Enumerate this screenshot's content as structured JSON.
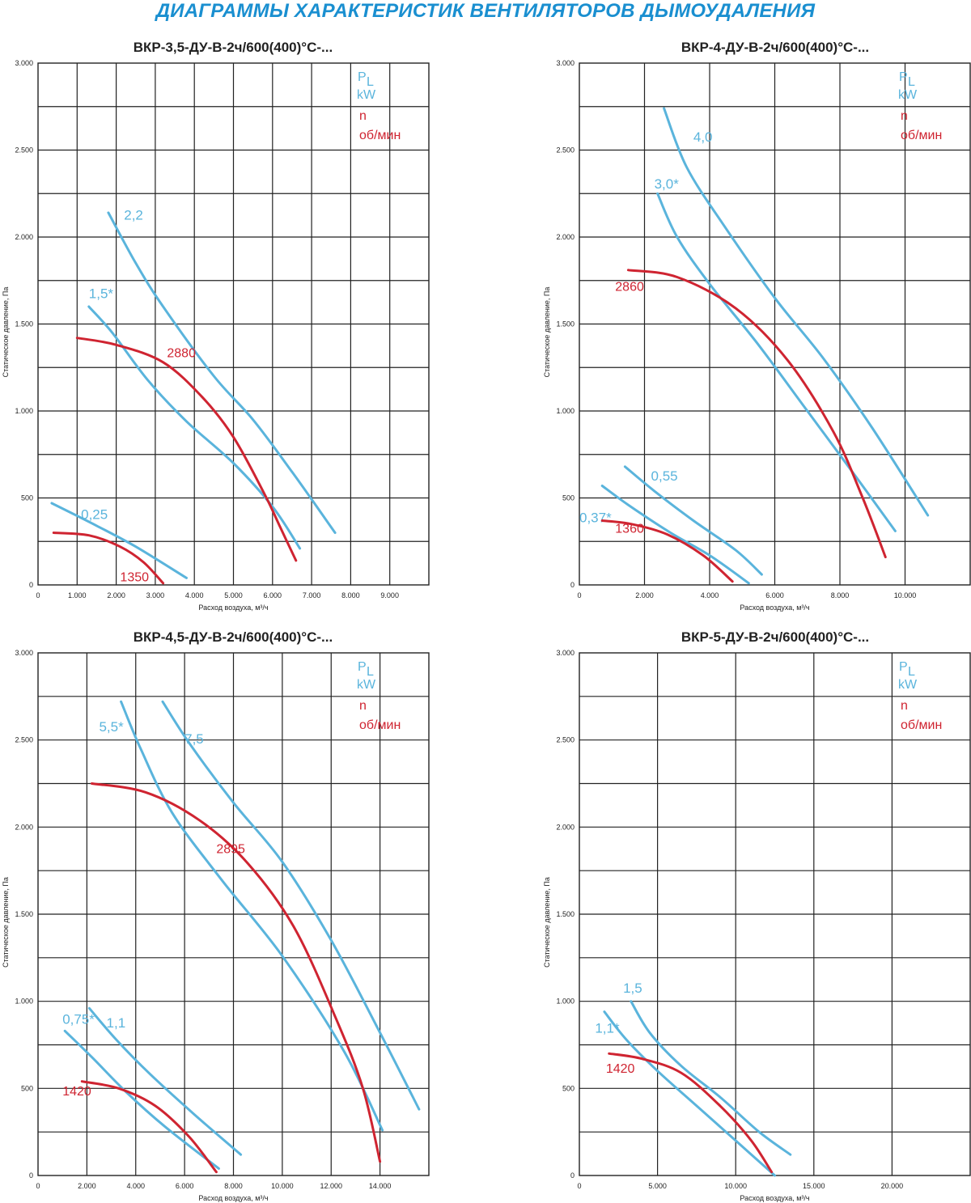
{
  "page_title": "ДИАГРАММЫ ХАРАКТЕРИСТИК ВЕНТИЛЯТОРОВ ДЫМОУДАЛЕНИЯ",
  "colors": {
    "title": "#1a8fd0",
    "power": "#5ab4dc",
    "speed": "#cf2431",
    "grid": "#222222"
  },
  "chart_data": [
    {
      "type": "line",
      "title": "ВКР-3,5-ДУ-В-2ч/600(400)°С-...",
      "xlabel": "Расход воздуха, м³/ч",
      "ylabel": "Статическое давление, Па",
      "xlim": [
        0,
        10000
      ],
      "ylim": [
        0,
        3000
      ],
      "x_ticks": [
        0,
        1000,
        2000,
        3000,
        4000,
        5000,
        6000,
        7000,
        8000,
        9000
      ],
      "x_tick_labels": [
        "0",
        "1.000",
        "2.000",
        "3.000",
        "4.000",
        "5.000",
        "6.000",
        "7.000",
        "8.000",
        "9.000"
      ],
      "y_ticks": [
        0,
        500,
        1000,
        1500,
        2000,
        2500,
        3000
      ],
      "y_tick_labels": [
        "0",
        "500",
        "1.000",
        "1.500",
        "2.000",
        "2.500",
        "3.000"
      ],
      "grid": true,
      "legend": {
        "p_main": "P",
        "p_sub": "L",
        "p_unit": "kW",
        "n": "n",
        "n_unit": "об/мин"
      },
      "series": [
        {
          "name": "0,25",
          "kind": "power",
          "x": [
            350,
            1500,
            2500,
            3800
          ],
          "y": [
            470,
            340,
            220,
            40
          ]
        },
        {
          "name": "1,5*",
          "kind": "power",
          "x": [
            1300,
            1900,
            2800,
            3800,
            5000,
            6000,
            6700
          ],
          "y": [
            1600,
            1450,
            1180,
            940,
            700,
            450,
            210
          ]
        },
        {
          "name": "2,2",
          "kind": "power",
          "x": [
            1800,
            2500,
            3200,
            4500,
            5500,
            6500,
            7600
          ],
          "y": [
            2140,
            1850,
            1600,
            1200,
            950,
            650,
            300
          ]
        },
        {
          "name": "1350",
          "kind": "speed",
          "x": [
            400,
            1300,
            2100,
            2700,
            3200
          ],
          "y": [
            300,
            285,
            220,
            130,
            10
          ]
        },
        {
          "name": "2880",
          "kind": "speed",
          "x": [
            1000,
            2000,
            3200,
            4200,
            5000,
            5800,
            6200,
            6600
          ],
          "y": [
            1420,
            1380,
            1280,
            1080,
            850,
            520,
            330,
            140
          ]
        }
      ]
    },
    {
      "type": "line",
      "title": "ВКР-4-ДУ-В-2ч/600(400)°С-...",
      "xlabel": "Расход воздуха, м³/ч",
      "ylabel": "Статическое давление, Па",
      "xlim": [
        0,
        12000
      ],
      "ylim": [
        0,
        3000
      ],
      "x_ticks": [
        0,
        2000,
        4000,
        6000,
        8000,
        10000
      ],
      "x_tick_labels": [
        "0",
        "2.000",
        "4.000",
        "6.000",
        "8.000",
        "10.000"
      ],
      "y_ticks": [
        0,
        500,
        1000,
        1500,
        2000,
        2500,
        3000
      ],
      "y_tick_labels": [
        "0",
        "500",
        "1.000",
        "1.500",
        "2.000",
        "2.500",
        "3.000"
      ],
      "grid": true,
      "legend": {
        "p_main": "P",
        "p_sub": "L",
        "p_unit": "kW",
        "n": "n",
        "n_unit": "об/мин"
      },
      "series": [
        {
          "name": "0,37*",
          "kind": "power",
          "x": [
            700,
            1500,
            2800,
            4000,
            5200
          ],
          "y": [
            570,
            460,
            300,
            170,
            10
          ]
        },
        {
          "name": "0,55",
          "kind": "power",
          "x": [
            1400,
            2300,
            3500,
            4800,
            5600
          ],
          "y": [
            680,
            540,
            370,
            200,
            60
          ]
        },
        {
          "name": "3,0*",
          "kind": "power",
          "x": [
            2400,
            3000,
            4000,
            5500,
            7000,
            8500,
            9700
          ],
          "y": [
            2250,
            2000,
            1730,
            1380,
            1000,
            620,
            310
          ]
        },
        {
          "name": "4,0",
          "kind": "power",
          "x": [
            2600,
            3300,
            4500,
            6000,
            7500,
            9000,
            10700
          ],
          "y": [
            2740,
            2400,
            2050,
            1650,
            1300,
            900,
            400
          ]
        },
        {
          "name": "1360",
          "kind": "speed",
          "x": [
            700,
            1600,
            2700,
            3800,
            4700
          ],
          "y": [
            370,
            350,
            290,
            170,
            20
          ]
        },
        {
          "name": "2860",
          "kind": "speed",
          "x": [
            1500,
            3000,
            4800,
            6400,
            7800,
            8700,
            9400
          ],
          "y": [
            1810,
            1770,
            1590,
            1290,
            880,
            500,
            160
          ]
        }
      ]
    },
    {
      "type": "line",
      "title": "ВКР-4,5-ДУ-В-2ч/600(400)°С-...",
      "xlabel": "Расход воздуха, м³/ч",
      "ylabel": "Статическое давление, Па",
      "xlim": [
        0,
        16000
      ],
      "ylim": [
        0,
        3000
      ],
      "x_ticks": [
        0,
        2000,
        4000,
        6000,
        8000,
        10000,
        12000,
        14000
      ],
      "x_tick_labels": [
        "0",
        "2.000",
        "4.000",
        "6.000",
        "8.000",
        "10.000",
        "12.000",
        "14.000"
      ],
      "y_ticks": [
        0,
        500,
        1000,
        1500,
        2000,
        2500,
        3000
      ],
      "y_tick_labels": [
        "0",
        "500",
        "1.000",
        "1.500",
        "2.000",
        "2.500",
        "3.000"
      ],
      "grid": true,
      "legend": {
        "p_main": "P",
        "p_sub": "L",
        "p_unit": "kW",
        "n": "n",
        "n_unit": "об/мин"
      },
      "series": [
        {
          "name": "0,75*",
          "kind": "power",
          "x": [
            1100,
            2200,
            3600,
            5200,
            7400
          ],
          "y": [
            830,
            680,
            480,
            280,
            40
          ]
        },
        {
          "name": "1,1",
          "kind": "power",
          "x": [
            2100,
            3200,
            4600,
            6400,
            8300
          ],
          "y": [
            960,
            780,
            580,
            350,
            120
          ]
        },
        {
          "name": "5,5*",
          "kind": "power",
          "x": [
            3400,
            4200,
            5500,
            7500,
            10000,
            12500,
            14100
          ],
          "y": [
            2720,
            2450,
            2080,
            1700,
            1260,
            720,
            260
          ]
        },
        {
          "name": "7,5",
          "kind": "power",
          "x": [
            5100,
            6200,
            8000,
            10000,
            12000,
            14000,
            15600
          ],
          "y": [
            2720,
            2480,
            2140,
            1800,
            1350,
            820,
            380
          ]
        },
        {
          "name": "1420",
          "kind": "speed",
          "x": [
            1800,
            3300,
            4800,
            6200,
            7300
          ],
          "y": [
            540,
            500,
            400,
            220,
            20
          ]
        },
        {
          "name": "2895",
          "kind": "speed",
          "x": [
            2200,
            4400,
            6600,
            8600,
            10500,
            12200,
            13300,
            14000
          ],
          "y": [
            2250,
            2200,
            2040,
            1790,
            1420,
            900,
            500,
            80
          ]
        }
      ]
    },
    {
      "type": "line",
      "title": "ВКР-5-ДУ-В-2ч/600(400)°С-...",
      "xlabel": "Расход воздуха, м³/ч",
      "ylabel": "Статическое давление, Па",
      "xlim": [
        0,
        25000
      ],
      "ylim": [
        0,
        3000
      ],
      "x_ticks": [
        0,
        5000,
        10000,
        15000,
        20000
      ],
      "x_tick_labels": [
        "0",
        "5.000",
        "10.000",
        "15.000",
        "20.000"
      ],
      "y_ticks": [
        0,
        500,
        1000,
        1500,
        2000,
        2500,
        3000
      ],
      "y_tick_labels": [
        "0",
        "500",
        "1.000",
        "1.500",
        "2.000",
        "2.500",
        "3.000"
      ],
      "grid": true,
      "legend": {
        "p_main": "P",
        "p_sub": "L",
        "p_unit": "kW",
        "n": "n",
        "n_unit": "об/мин"
      },
      "series": [
        {
          "name": "1,1*",
          "kind": "power",
          "x": [
            1600,
            3000,
            5000,
            7500,
            10000,
            12500
          ],
          "y": [
            940,
            780,
            600,
            400,
            200,
            0
          ]
        },
        {
          "name": "1,5",
          "kind": "power",
          "x": [
            3300,
            4500,
            6500,
            9000,
            11500,
            13500
          ],
          "y": [
            1000,
            820,
            630,
            450,
            250,
            120
          ]
        },
        {
          "name": "1420",
          "kind": "speed",
          "x": [
            1900,
            4000,
            6500,
            9000,
            11000,
            12300
          ],
          "y": [
            700,
            670,
            590,
            400,
            200,
            20
          ]
        }
      ]
    }
  ]
}
